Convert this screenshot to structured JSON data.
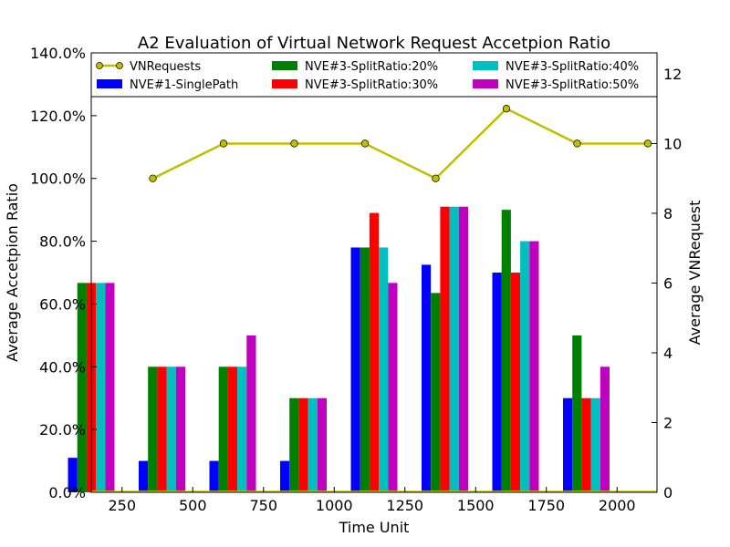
{
  "chart_data": {
    "type": "bar",
    "title": "A2 Evaluation of Virtual Network Request Accetpion Ratio",
    "xlabel": "Time Unit",
    "ylabel": "Average Accetpion Ratio",
    "y2label": "Average VNRequest",
    "categories": [
      "250",
      "500",
      "750",
      "1000",
      "1250",
      "1500",
      "1750",
      "2000"
    ],
    "ylim": [
      0,
      140
    ],
    "yticks": [
      "0.0%",
      "20.0%",
      "40.0%",
      "60.0%",
      "80.0%",
      "100.0%",
      "120.0%",
      "140.0%"
    ],
    "y2lim": [
      0,
      12.6
    ],
    "y2ticks": [
      "0",
      "2",
      "4",
      "6",
      "8",
      "10",
      "12"
    ],
    "legend_position": "top",
    "series": [
      {
        "name": "NVE#1-SinglePath",
        "color": "#0000ff",
        "values": [
          11,
          10,
          10,
          10,
          78,
          72.5,
          70,
          30
        ]
      },
      {
        "name": "NVE#3-SplitRatio:20%",
        "color": "#008000",
        "values": [
          66.7,
          40,
          40,
          30,
          78,
          63.5,
          90,
          50
        ]
      },
      {
        "name": "NVE#3-SplitRatio:30%",
        "color": "#ff0000",
        "values": [
          66.7,
          40,
          40,
          30,
          89,
          91,
          70,
          30
        ]
      },
      {
        "name": "NVE#3-SplitRatio:40%",
        "color": "#00bfbf",
        "values": [
          66.7,
          40,
          40,
          30,
          78,
          91,
          80,
          30
        ]
      },
      {
        "name": "NVE#3-SplitRatio:50%",
        "color": "#bf00bf",
        "values": [
          66.7,
          40,
          50,
          30,
          66.7,
          91,
          80,
          40
        ]
      }
    ],
    "line_series": {
      "name": "VNRequests",
      "color": "#bfbf00",
      "axis": "right",
      "values": [
        9,
        10,
        10,
        10,
        9,
        11,
        10,
        10
      ]
    }
  }
}
